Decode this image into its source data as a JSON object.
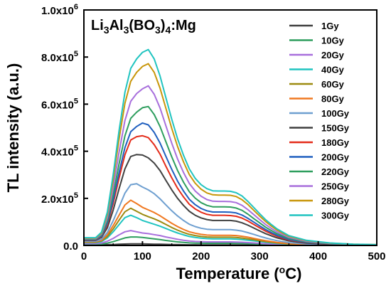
{
  "chart_data": {
    "type": "line",
    "title": {
      "main": "Li",
      "parts": [
        {
          "t": "Li",
          "sub": false
        },
        {
          "t": "3",
          "sub": true
        },
        {
          "t": "Al",
          "sub": false
        },
        {
          "t": "3",
          "sub": true
        },
        {
          "t": "(BO",
          "sub": false
        },
        {
          "t": "3",
          "sub": true
        },
        {
          "t": ")",
          "sub": false
        },
        {
          "t": "4",
          "sub": true
        },
        {
          "t": ":Mg",
          "sub": false
        }
      ]
    },
    "xlabel": {
      "main": "Temperature (",
      "sup": "o",
      "end": "C)"
    },
    "ylabel": "TL intensity (a.u.)",
    "xlim": [
      0,
      500
    ],
    "ylim": [
      0,
      1000000
    ],
    "xticks": [
      0,
      100,
      200,
      300,
      400,
      500
    ],
    "yticks": [
      {
        "value": 0,
        "mant": "0.0",
        "exp": ""
      },
      {
        "value": 200000,
        "mant": "2.0x10",
        "exp": "5"
      },
      {
        "value": 400000,
        "mant": "4.0x10",
        "exp": "5"
      },
      {
        "value": 600000,
        "mant": "6.0x10",
        "exp": "5"
      },
      {
        "value": 800000,
        "mant": "8.0x10",
        "exp": "5"
      },
      {
        "value": 1000000,
        "mant": "1.0x10",
        "exp": "6"
      }
    ],
    "grid": false,
    "legend_position": "top-right",
    "x": [
      0,
      20,
      30,
      40,
      50,
      60,
      70,
      80,
      90,
      100,
      110,
      120,
      130,
      140,
      150,
      160,
      170,
      180,
      190,
      200,
      210,
      220,
      230,
      240,
      250,
      260,
      270,
      280,
      290,
      300,
      310,
      320,
      330,
      350,
      380,
      420,
      460,
      500
    ],
    "series": [
      {
        "name": "1Gy",
        "color": "#404040",
        "values": [
          3000,
          3000,
          3000,
          3500,
          4000,
          5000,
          6000,
          6500,
          6500,
          6500,
          6000,
          5500,
          5000,
          4500,
          4000,
          3500,
          3000,
          2800,
          2600,
          2500,
          2400,
          2400,
          2400,
          2400,
          2400,
          2300,
          2200,
          2000,
          1800,
          1600,
          1400,
          1200,
          1100,
          1000,
          800,
          500,
          300,
          200
        ]
      },
      {
        "name": "10Gy",
        "color": "#2e9e5e",
        "values": [
          5000,
          5000,
          6000,
          10000,
          16000,
          24000,
          32000,
          36000,
          36000,
          34000,
          31000,
          28000,
          25000,
          21000,
          18000,
          15000,
          13000,
          11000,
          10000,
          9500,
          9000,
          9000,
          9000,
          9000,
          9000,
          8800,
          8300,
          7500,
          6500,
          5500,
          4500,
          3700,
          3000,
          2000,
          1200,
          700,
          400,
          300
        ]
      },
      {
        "name": "20Gy",
        "color": "#a86fdc",
        "values": [
          8000,
          8000,
          10000,
          18000,
          30000,
          45000,
          58000,
          63000,
          58000,
          53000,
          50000,
          46000,
          42000,
          36000,
          31000,
          26000,
          22000,
          19000,
          17000,
          16000,
          15000,
          15000,
          15000,
          15000,
          15000,
          14500,
          13500,
          12000,
          10500,
          9000,
          7500,
          6000,
          4800,
          3000,
          1700,
          900,
          500,
          400
        ]
      },
      {
        "name": "40Gy",
        "color": "#20c4c0",
        "values": [
          12000,
          12000,
          16000,
          32000,
          58000,
          88000,
          118000,
          128000,
          118000,
          106000,
          98000,
          90000,
          82000,
          72000,
          62000,
          53000,
          45000,
          38000,
          34000,
          31000,
          29000,
          28000,
          28000,
          28000,
          28000,
          27000,
          25000,
          22500,
          19500,
          16500,
          13500,
          11000,
          8700,
          5200,
          2800,
          1400,
          800,
          500
        ]
      },
      {
        "name": "60Gy",
        "color": "#9c8a10",
        "values": [
          14000,
          14000,
          19000,
          38000,
          70000,
          107000,
          143000,
          158000,
          145000,
          132000,
          122000,
          113000,
          102000,
          89000,
          76000,
          65000,
          55000,
          47000,
          42000,
          38000,
          36000,
          35000,
          35000,
          35000,
          35000,
          34000,
          31500,
          28000,
          24500,
          20500,
          16700,
          13500,
          10700,
          6400,
          3400,
          1700,
          900,
          600
        ]
      },
      {
        "name": "80Gy",
        "color": "#f07820",
        "values": [
          16000,
          16000,
          22000,
          45000,
          84000,
          128000,
          172000,
          192000,
          178000,
          162000,
          151000,
          140000,
          126000,
          110000,
          94000,
          80000,
          68000,
          58000,
          52000,
          47000,
          44000,
          43000,
          43000,
          43000,
          43000,
          42000,
          39000,
          35000,
          30000,
          25000,
          20500,
          16500,
          13000,
          7800,
          4100,
          2000,
          1000,
          700
        ]
      },
      {
        "name": "100Gy",
        "color": "#6e9fd0",
        "values": [
          18000,
          18000,
          26000,
          55000,
          105000,
          162000,
          222000,
          258000,
          262000,
          248000,
          236000,
          220000,
          198000,
          172000,
          147000,
          125000,
          106000,
          90000,
          80000,
          73000,
          69000,
          67000,
          67000,
          67000,
          67000,
          65000,
          61000,
          54500,
          47000,
          39000,
          32000,
          25800,
          20300,
          12200,
          6400,
          3100,
          1600,
          1000
        ]
      },
      {
        "name": "150Gy",
        "color": "#404040",
        "values": [
          22000,
          22000,
          34000,
          75000,
          150000,
          240000,
          325000,
          378000,
          386000,
          384000,
          372000,
          350000,
          318000,
          276000,
          236000,
          200000,
          170000,
          145000,
          128000,
          117000,
          110000,
          106000,
          106000,
          106000,
          106000,
          103000,
          96000,
          86000,
          74000,
          62000,
          50500,
          40800,
          32000,
          19200,
          10000,
          4900,
          2500,
          1600
        ]
      },
      {
        "name": "180Gy",
        "color": "#e42c1a",
        "values": [
          24000,
          24000,
          38000,
          88000,
          178000,
          285000,
          385000,
          448000,
          462000,
          466000,
          458000,
          428000,
          388000,
          336000,
          287000,
          243000,
          206000,
          175000,
          155000,
          141000,
          132000,
          128000,
          128000,
          128000,
          127000,
          124000,
          116000,
          104000,
          89000,
          75000,
          61000,
          49300,
          38700,
          23200,
          12100,
          5900,
          3000,
          1900
        ]
      },
      {
        "name": "200Gy",
        "color": "#1f5fbf",
        "values": [
          25000,
          25000,
          40000,
          95000,
          192000,
          308000,
          415000,
          483000,
          505000,
          520000,
          512000,
          480000,
          435000,
          378000,
          323000,
          273000,
          231000,
          196000,
          173000,
          157000,
          147000,
          142000,
          142000,
          142000,
          141000,
          138000,
          129000,
          115000,
          99000,
          83000,
          68000,
          54800,
          43000,
          25800,
          13400,
          6600,
          3300,
          2100
        ]
      },
      {
        "name": "220Gy",
        "color": "#2e9e5e",
        "values": [
          27000,
          27000,
          44000,
          105000,
          215000,
          345000,
          465000,
          540000,
          566000,
          585000,
          590000,
          556000,
          505000,
          440000,
          376000,
          318000,
          269000,
          228000,
          201000,
          182000,
          170000,
          164000,
          164000,
          164000,
          163000,
          159000,
          149000,
          133000,
          114000,
          96000,
          78000,
          63000,
          49500,
          29700,
          15400,
          7600,
          3800,
          2400
        ]
      },
      {
        "name": "250Gy",
        "color": "#a86fdc",
        "values": [
          29000,
          29000,
          48000,
          118000,
          245000,
          395000,
          530000,
          612000,
          645000,
          665000,
          678000,
          642000,
          584000,
          508000,
          434000,
          367000,
          310000,
          263000,
          231000,
          209000,
          195000,
          188000,
          187000,
          187000,
          186000,
          182000,
          170000,
          152000,
          131000,
          110000,
          89500,
          72300,
          56800,
          34000,
          17700,
          8700,
          4400,
          2800
        ]
      },
      {
        "name": "280Gy",
        "color": "#c8960a",
        "values": [
          31000,
          31000,
          52000,
          132000,
          278000,
          450000,
          603000,
          697000,
          735000,
          760000,
          772000,
          735000,
          668000,
          582000,
          497000,
          420000,
          355000,
          301000,
          264000,
          239000,
          223000,
          215000,
          214000,
          214000,
          213000,
          208000,
          194000,
          174000,
          149000,
          125000,
          102000,
          82300,
          64700,
          38800,
          20200,
          9900,
          5000,
          3200
        ]
      },
      {
        "name": "300Gy",
        "color": "#20c4c0",
        "values": [
          33000,
          33000,
          56000,
          142000,
          300000,
          486000,
          650000,
          752000,
          792000,
          820000,
          832000,
          792000,
          720000,
          627000,
          536000,
          453000,
          383000,
          325000,
          285000,
          258000,
          241000,
          232000,
          231000,
          231000,
          230000,
          224000,
          210000,
          187000,
          161000,
          135000,
          110000,
          88700,
          69800,
          41800,
          21800,
          10700,
          5400,
          3400
        ]
      }
    ]
  }
}
